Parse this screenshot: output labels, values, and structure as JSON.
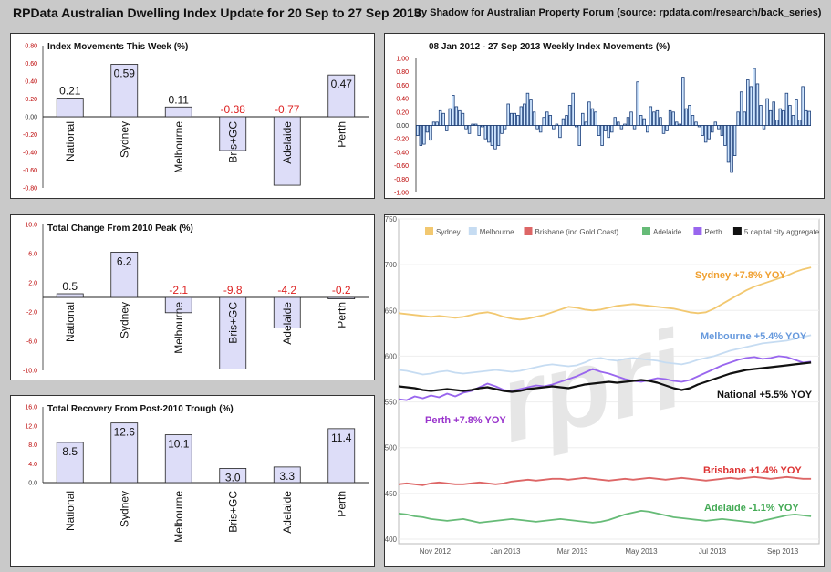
{
  "header": {
    "title": "RPData Australian Dwelling Index Update for 20 Sep to 27 Sep 2013",
    "subtitle": "By Shadow for Australian Property Forum (source: rpdata.com/research/back_series)"
  },
  "colors": {
    "bar_fill": "#ddddf8",
    "bar_stroke": "#222222",
    "weekly_fill": "#cfe6ff",
    "weekly_stroke": "#1a3e7a",
    "negative_text": "#dd2222",
    "positive_text": "#111111"
  },
  "chart_data": [
    {
      "type": "bar",
      "title": "Index Movements This Week (%)",
      "categories": [
        "National",
        "Sydney",
        "Melbourne",
        "Bris+GC",
        "Adelaide",
        "Perth"
      ],
      "values": [
        0.21,
        0.59,
        0.11,
        -0.38,
        -0.77,
        0.47
      ],
      "value_labels": [
        "0.21",
        "0.59",
        "0.11",
        "-0.38",
        "-0.77",
        "0.47"
      ],
      "yticks": [
        0.8,
        0.6,
        0.4,
        0.2,
        0.0,
        -0.2,
        -0.4,
        -0.6,
        -0.8
      ],
      "ytick_labels": [
        "0.80",
        "0.60",
        "0.40",
        "0.20",
        "0.00",
        "-0.20",
        "-0.40",
        "-0.60",
        "-0.80"
      ],
      "ylim": [
        -0.8,
        0.8
      ]
    },
    {
      "type": "bar",
      "title": "08 Jan 2012 - 27 Sep 2013 Weekly Index Movements (%)",
      "values": [
        -0.15,
        -0.3,
        -0.28,
        -0.1,
        -0.22,
        0.05,
        0.05,
        0.22,
        0.18,
        -0.08,
        0.25,
        0.45,
        0.28,
        0.22,
        0.18,
        -0.05,
        -0.12,
        0.02,
        0.02,
        -0.15,
        -0.02,
        -0.2,
        -0.25,
        -0.3,
        -0.35,
        -0.3,
        -0.12,
        -0.05,
        0.32,
        0.18,
        0.18,
        0.15,
        0.28,
        0.32,
        0.48,
        0.38,
        0.2,
        -0.05,
        -0.1,
        0.12,
        0.2,
        0.15,
        -0.05,
        0.02,
        -0.18,
        0.1,
        0.15,
        0.3,
        0.48,
        -0.02,
        -0.3,
        0.18,
        0.05,
        0.35,
        0.25,
        0.2,
        -0.15,
        -0.3,
        -0.08,
        -0.18,
        -0.1,
        0.12,
        0.05,
        -0.05,
        0.02,
        0.12,
        0.2,
        -0.05,
        0.65,
        0.15,
        0.1,
        -0.1,
        0.28,
        0.2,
        0.22,
        0.12,
        -0.12,
        -0.08,
        0.22,
        0.2,
        0.05,
        0.02,
        0.72,
        0.25,
        0.3,
        0.15,
        0.05,
        -0.02,
        -0.15,
        -0.25,
        -0.2,
        -0.1,
        0.05,
        -0.05,
        -0.15,
        -0.3,
        -0.55,
        -0.7,
        -0.45,
        0.2,
        0.5,
        0.2,
        0.68,
        0.58,
        0.85,
        0.62,
        0.3,
        -0.05,
        0.4,
        0.22,
        0.35,
        0.08,
        0.25,
        0.22,
        0.48,
        0.3,
        0.15,
        0.38,
        0.08,
        0.58,
        0.22,
        0.21
      ],
      "yticks": [
        1.0,
        0.8,
        0.6,
        0.4,
        0.2,
        0.0,
        -0.2,
        -0.4,
        -0.6,
        -0.8,
        -1.0
      ],
      "ytick_labels": [
        "1.00",
        "0.80",
        "0.60",
        "0.40",
        "0.20",
        "0.00",
        "-0.20",
        "-0.40",
        "-0.60",
        "-0.80",
        "-1.00"
      ],
      "ylim": [
        -1.0,
        1.0
      ]
    },
    {
      "type": "bar",
      "title": "Total Change From 2010 Peak (%)",
      "categories": [
        "National",
        "Sydney",
        "Melbourne",
        "Bris+GC",
        "Adelaide",
        "Perth"
      ],
      "values": [
        0.5,
        6.2,
        -2.1,
        -9.8,
        -4.2,
        -0.2
      ],
      "value_labels": [
        "0.5",
        "6.2",
        "-2.1",
        "-9.8",
        "-4.2",
        "-0.2"
      ],
      "yticks": [
        10.0,
        6.0,
        2.0,
        -2.0,
        -6.0,
        -10.0
      ],
      "ytick_labels": [
        "10.0",
        "6.0",
        "2.0",
        "-2.0",
        "-6.0",
        "-10.0"
      ],
      "ylim": [
        -10.0,
        10.0
      ]
    },
    {
      "type": "bar",
      "title": "Total Recovery From Post-2010 Trough (%)",
      "categories": [
        "National",
        "Sydney",
        "Melbourne",
        "Bris+GC",
        "Adelaide",
        "Perth"
      ],
      "values": [
        8.5,
        12.6,
        10.1,
        3.0,
        3.3,
        11.4
      ],
      "value_labels": [
        "8.5",
        "12.6",
        "10.1",
        "3.0",
        "3.3",
        "11.4"
      ],
      "yticks": [
        16.0,
        12.0,
        8.0,
        4.0,
        0.0
      ],
      "ytick_labels": [
        "16.0",
        "12.0",
        "8.0",
        "4.0",
        "0.0"
      ],
      "ylim": [
        0,
        16
      ]
    },
    {
      "type": "line",
      "title": "",
      "watermark": "rpri",
      "yticks": [
        750,
        700,
        650,
        600,
        550,
        500,
        450,
        400
      ],
      "ylim": [
        395,
        750
      ],
      "xticks": [
        "Nov 2012",
        "Jan 2013",
        "Mar 2013",
        "May 2013",
        "Jul 2013",
        "Sep 2013"
      ],
      "xtick_positions": [
        4.5,
        13.2,
        21.5,
        30,
        38.8,
        47.5
      ],
      "xlim": [
        0,
        52
      ],
      "legend": [
        "Sydney",
        "Melbourne",
        "Brisbane (inc Gold Coast)",
        "Adelaide",
        "Perth",
        "5 capital city aggregate"
      ],
      "series": [
        {
          "name": "Sydney",
          "color": "#f2c870",
          "label": "Sydney +7.8% YOY",
          "label_color": "#f0a030",
          "values": [
            647,
            646,
            645,
            644,
            643,
            644,
            643,
            642,
            643,
            645,
            647,
            648,
            646,
            643,
            641,
            640,
            641,
            643,
            645,
            648,
            651,
            654,
            653,
            651,
            650,
            651,
            653,
            655,
            656,
            657,
            656,
            655,
            654,
            653,
            652,
            650,
            648,
            647,
            648,
            652,
            657,
            662,
            667,
            672,
            676,
            679,
            682,
            685,
            688,
            692,
            695,
            697
          ]
        },
        {
          "name": "Melbourne",
          "color": "#c6dcf2",
          "label": "Melbourne +5.4% YOY",
          "label_color": "#6699dd",
          "values": [
            585,
            584,
            582,
            580,
            581,
            583,
            584,
            582,
            581,
            582,
            583,
            584,
            585,
            584,
            583,
            584,
            586,
            588,
            590,
            591,
            590,
            589,
            590,
            593,
            597,
            598,
            596,
            595,
            597,
            598,
            597,
            596,
            595,
            593,
            592,
            591,
            593,
            596,
            598,
            600,
            603,
            606,
            608,
            610,
            612,
            614,
            615,
            616,
            617,
            619,
            621,
            623
          ]
        },
        {
          "name": "Brisbane (inc Gold Coast)",
          "color": "#dd6666",
          "label": "Brisbane +1.4% YOY",
          "label_color": "#dd3333",
          "values": [
            460,
            461,
            460,
            459,
            461,
            462,
            461,
            460,
            460,
            461,
            462,
            461,
            460,
            461,
            463,
            464,
            465,
            464,
            465,
            466,
            466,
            465,
            466,
            467,
            466,
            465,
            464,
            465,
            466,
            465,
            466,
            467,
            466,
            465,
            466,
            467,
            466,
            465,
            464,
            465,
            466,
            467,
            466,
            467,
            468,
            467,
            466,
            467,
            468,
            467,
            466,
            466
          ]
        },
        {
          "name": "Adelaide",
          "color": "#66bb77",
          "label": "Adelaide -1.1% YOY",
          "label_color": "#44aa55",
          "values": [
            428,
            427,
            425,
            424,
            422,
            421,
            420,
            421,
            422,
            420,
            418,
            419,
            420,
            421,
            422,
            421,
            420,
            419,
            420,
            421,
            422,
            421,
            420,
            419,
            418,
            419,
            421,
            424,
            427,
            429,
            431,
            430,
            428,
            426,
            424,
            423,
            422,
            421,
            420,
            421,
            422,
            421,
            420,
            419,
            418,
            420,
            422,
            424,
            426,
            427,
            426,
            425
          ]
        },
        {
          "name": "Perth",
          "color": "#9966ee",
          "label": "Perth +7.8% YOY",
          "label_color": "#9933cc",
          "values": [
            553,
            552,
            556,
            554,
            557,
            555,
            559,
            556,
            560,
            562,
            566,
            570,
            567,
            563,
            562,
            564,
            566,
            568,
            567,
            569,
            572,
            575,
            578,
            582,
            586,
            583,
            581,
            578,
            575,
            573,
            572,
            574,
            576,
            575,
            573,
            572,
            574,
            578,
            582,
            586,
            590,
            593,
            596,
            598,
            599,
            597,
            598,
            600,
            599,
            596,
            593,
            594
          ]
        },
        {
          "name": "5 capital city aggregate",
          "color": "#111111",
          "label": "National +5.5% YOY",
          "label_color": "#111111",
          "values": [
            567,
            566,
            565,
            563,
            562,
            563,
            564,
            563,
            562,
            563,
            565,
            566,
            564,
            562,
            561,
            562,
            564,
            565,
            566,
            567,
            566,
            565,
            567,
            569,
            570,
            571,
            572,
            571,
            572,
            573,
            574,
            573,
            571,
            568,
            565,
            563,
            565,
            569,
            572,
            575,
            578,
            581,
            583,
            585,
            586,
            587,
            588,
            589,
            590,
            591,
            592,
            593
          ]
        }
      ]
    }
  ]
}
